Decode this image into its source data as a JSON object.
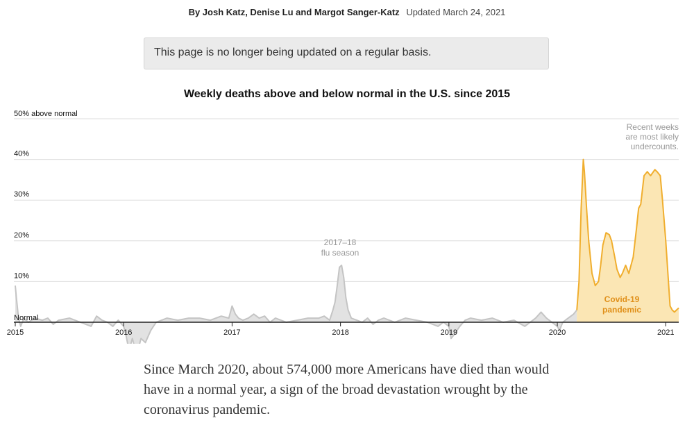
{
  "byline": {
    "authors": "By Josh Katz, Denise Lu and Margot Sanger-Katz",
    "updated": "Updated March 24, 2021"
  },
  "notice": "This page is no longer being updated on a regular basis.",
  "chart_data": {
    "type": "area",
    "title": "Weekly deaths above and below normal in the U.S. since 2015",
    "y_unit_label": "50% above normal",
    "baseline_label": "Normal",
    "xlim": [
      2015.0,
      2021.12
    ],
    "ylim": [
      -9,
      50
    ],
    "y_ticks": [
      {
        "value": 10,
        "label": "10%"
      },
      {
        "value": 20,
        "label": "20%"
      },
      {
        "value": 30,
        "label": "30%"
      },
      {
        "value": 40,
        "label": "40%"
      }
    ],
    "x_ticks": [
      {
        "value": 2015,
        "label": "2015"
      },
      {
        "value": 2016,
        "label": "2016"
      },
      {
        "value": 2017,
        "label": "2017"
      },
      {
        "value": 2018,
        "label": "2018"
      },
      {
        "value": 2019,
        "label": "2019"
      },
      {
        "value": 2020,
        "label": "2020"
      },
      {
        "value": 2021,
        "label": "2021"
      }
    ],
    "grid": true,
    "series": [
      {
        "color": "#c4c4c4",
        "fill": "#e2e2e2",
        "x": [
          2015.0,
          2015.01,
          2015.03,
          2015.05,
          2015.08,
          2015.12,
          2015.18,
          2015.25,
          2015.3,
          2015.35,
          2015.4,
          2015.5,
          2015.6,
          2015.7,
          2015.75,
          2015.8,
          2015.85,
          2015.9,
          2015.95,
          2016.0,
          2016.02,
          2016.05,
          2016.08,
          2016.12,
          2016.16,
          2016.2,
          2016.25,
          2016.3,
          2016.35,
          2016.4,
          2016.5,
          2016.6,
          2016.7,
          2016.8,
          2016.9,
          2016.97,
          2017.0,
          2017.03,
          2017.06,
          2017.1,
          2017.15,
          2017.2,
          2017.25,
          2017.3,
          2017.35,
          2017.4,
          2017.5,
          2017.6,
          2017.7,
          2017.8,
          2017.85,
          2017.9,
          2017.93,
          2017.95,
          2017.97,
          2017.99,
          2018.01,
          2018.03,
          2018.05,
          2018.07,
          2018.1,
          2018.15,
          2018.2,
          2018.25,
          2018.3,
          2018.35,
          2018.4,
          2018.5,
          2018.6,
          2018.7,
          2018.8,
          2018.9,
          2018.95,
          2019.0,
          2019.02,
          2019.05,
          2019.1,
          2019.15,
          2019.2,
          2019.3,
          2019.4,
          2019.5,
          2019.6,
          2019.7,
          2019.8,
          2019.85,
          2019.9,
          2019.95,
          2020.0,
          2020.02,
          2020.05,
          2020.1,
          2020.15,
          2020.18
        ],
        "y": [
          9,
          6,
          1,
          -1,
          1,
          0,
          1,
          0.5,
          1,
          -0.5,
          0.5,
          1,
          0,
          -1,
          1.5,
          0.5,
          0,
          -1,
          0.5,
          -1,
          -3,
          -7,
          -4,
          -8,
          -4,
          -5,
          -2,
          0,
          0.5,
          1,
          0.5,
          1,
          1,
          0.5,
          1.5,
          1,
          4,
          2,
          1,
          0.5,
          1,
          2,
          1,
          1.5,
          0,
          1,
          0,
          0.5,
          1,
          1,
          1.5,
          0.5,
          3,
          5,
          9,
          13.5,
          14,
          11,
          6,
          3,
          1,
          0.5,
          0,
          1,
          -0.5,
          0.5,
          1,
          0,
          1,
          0.5,
          0,
          -1,
          0,
          -1,
          -4,
          -3,
          -1,
          0.5,
          1,
          0.5,
          1,
          0,
          0.5,
          -1,
          1,
          2.5,
          1,
          0,
          -1,
          -2,
          0,
          1,
          2,
          3
        ]
      },
      {
        "color": "#f0ae2e",
        "fill": "#fbe6b4",
        "x": [
          2020.18,
          2020.2,
          2020.22,
          2020.24,
          2020.25,
          2020.27,
          2020.29,
          2020.32,
          2020.35,
          2020.38,
          2020.4,
          2020.42,
          2020.45,
          2020.48,
          2020.5,
          2020.53,
          2020.55,
          2020.58,
          2020.6,
          2020.63,
          2020.66,
          2020.7,
          2020.73,
          2020.75,
          2020.77,
          2020.8,
          2020.83,
          2020.86,
          2020.9,
          2020.92,
          2020.95,
          2020.97,
          2021.0,
          2021.02,
          2021.04,
          2021.06,
          2021.08,
          2021.1,
          2021.12
        ],
        "y": [
          3,
          10,
          28,
          40,
          37,
          28,
          20,
          12,
          9,
          10,
          14,
          19,
          22,
          21.5,
          20,
          16,
          13,
          11,
          12,
          14,
          12,
          16,
          23,
          28,
          29,
          36,
          37,
          36,
          37.5,
          37,
          36,
          30,
          20,
          12,
          4,
          3,
          2.5,
          3,
          3.5
        ]
      }
    ],
    "annotations": {
      "flu_line1": "2017–18",
      "flu_line2": "flu season",
      "covid_line1": "Covid-19",
      "covid_line2": "pandemic",
      "recent_line1": "Recent weeks",
      "recent_line2": "are most likely",
      "recent_line3": "undercounts."
    }
  },
  "caption": "Since March 2020, about 574,000 more Americans have died than would have in a normal year, a sign of the broad devastation wrought by the coronavirus pandemic."
}
